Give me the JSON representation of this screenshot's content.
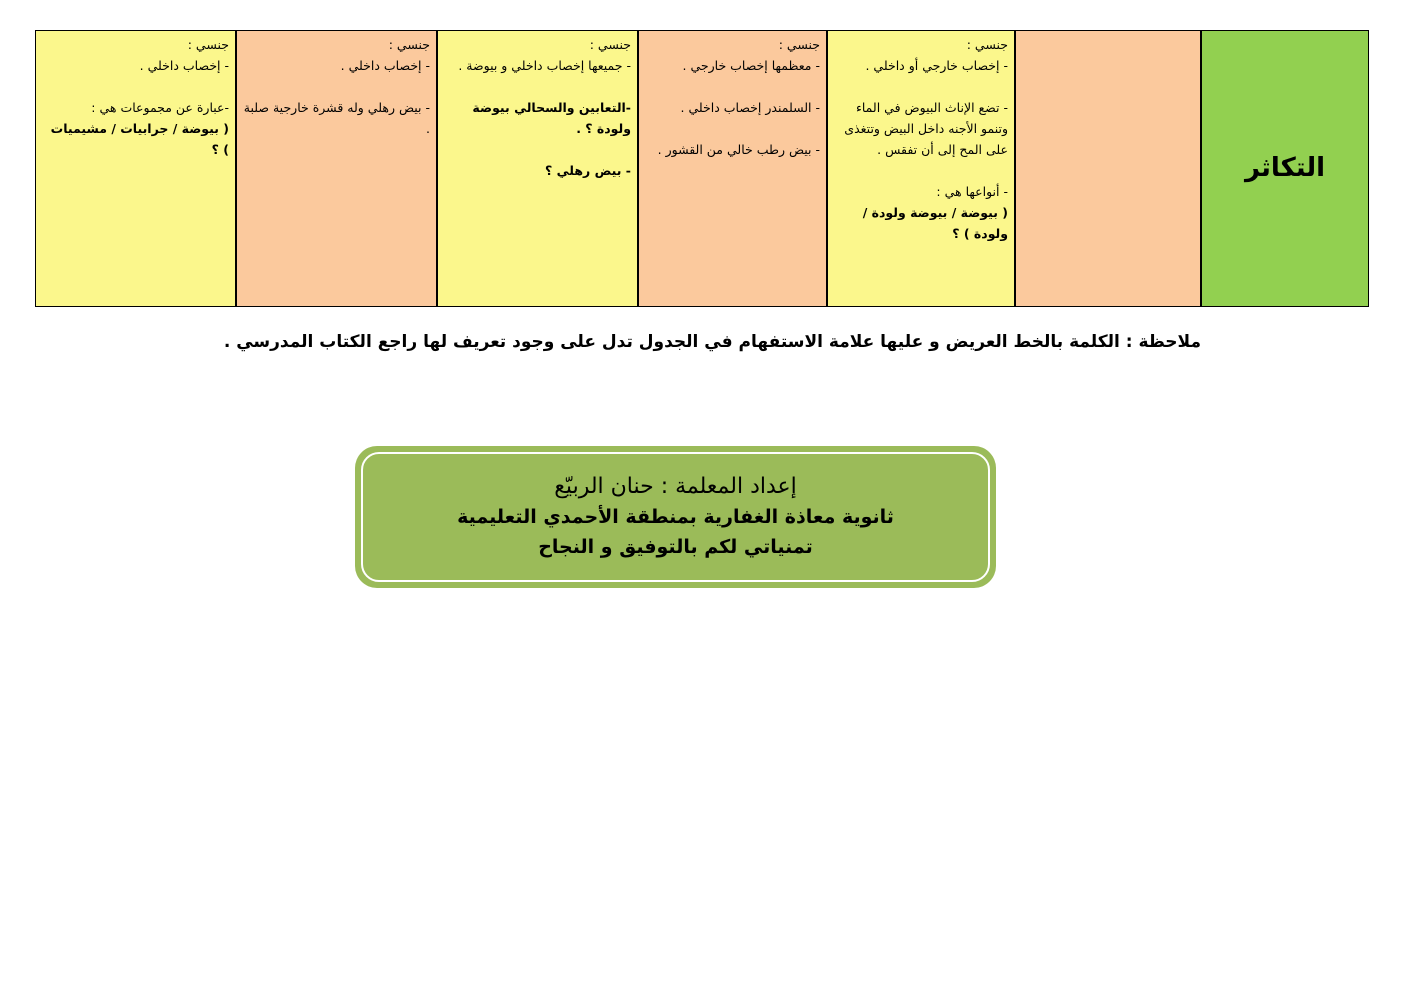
{
  "table": {
    "header": "التكاثر",
    "cells": [
      [
        [
          {
            "text": "جنسي :",
            "bold": false
          },
          {
            "text": "- إخصاب خارجي أو داخلي .",
            "bold": false
          }
        ],
        [
          {
            "text": "- تضع الإناث البيوض في الماء وتنمو الأجنه داخل البيض وتتغذى على المح إلى أن تفقس .",
            "bold": false
          }
        ],
        [
          {
            "text": "- أنواعها هي :",
            "bold": false
          },
          {
            "text": "( بيوضة / بيوضة ولودة / ولودة ) ؟",
            "bold": true
          }
        ]
      ],
      [
        [
          {
            "text": "جنسي :",
            "bold": false
          },
          {
            "text": "- معظمها إخصاب خارجي .",
            "bold": false
          }
        ],
        [
          {
            "text": "- السلمندر إخصاب داخلي .",
            "bold": false
          }
        ],
        [
          {
            "text": "- بيض رطب خالي من القشور .",
            "bold": false
          }
        ]
      ],
      [
        [
          {
            "text": "جنسي :",
            "bold": false
          },
          {
            "text": "- جميعها إخصاب داخلي و بيوضة .",
            "bold": false
          }
        ],
        [
          {
            "text": "-التعابين والسحالي بيوضة ولودة ؟ .",
            "bold": true
          }
        ],
        [
          {
            "text": "- بيض رهلي ؟",
            "bold": true
          }
        ]
      ],
      [
        [
          {
            "text": "جنسي :",
            "bold": false
          },
          {
            "text": "- إخصاب داخلي .",
            "bold": false
          }
        ],
        [
          {
            "text": "- بيض رهلي وله قشرة خارجية صلبة .",
            "bold": false
          }
        ]
      ],
      [
        [
          {
            "text": "جنسي :",
            "bold": false
          },
          {
            "text": "- إخصاب داخلي .",
            "bold": false
          }
        ],
        [
          {
            "text": "-عبارة عن مجموعات هي :",
            "bold": false
          },
          {
            "text": "( بيوضة / جرابيات / مشيميات ) ؟",
            "bold": true
          }
        ]
      ]
    ]
  },
  "note": "ملاحظة : الكلمة بالخط العريض و عليها علامة الاستفهام في الجدول تدل على وجود تعريف لها راجع الكتاب المدرسي .",
  "footer": {
    "lines": [
      "إعداد المعلمة : حنان الربيّع",
      "ثانوية معاذة الغفارية بمنطقة الأحمدي التعليمية",
      "تمنياتي لكم بالتوفيق و النجاح"
    ]
  }
}
